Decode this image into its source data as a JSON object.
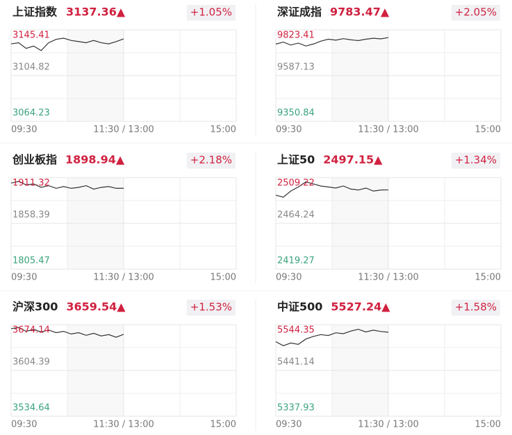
{
  "chart_data": [
    {
      "type": "line",
      "title": "上证指数",
      "subtitle": "3137.36▲",
      "annotation": "+1.05%",
      "color": "#333333",
      "grid": true,
      "ytick_colors": [
        "#d0213f",
        "#888888",
        "#3aa37c"
      ],
      "x": [
        0,
        8,
        16,
        24,
        32,
        40,
        48,
        56,
        64,
        72,
        80,
        88,
        96,
        104,
        112,
        120
      ],
      "values": [
        3133,
        3134,
        3129,
        3131,
        3127,
        3134,
        3137,
        3138,
        3136,
        3135,
        3134,
        3136,
        3134,
        3133,
        3135,
        3137.36
      ],
      "xlim": [
        0,
        240
      ],
      "xticks": [
        {
          "value": 0,
          "label": "09:30"
        },
        {
          "value": 120,
          "label": "11:30 / 13:00"
        },
        {
          "value": 240,
          "label": "15:00"
        }
      ],
      "ylim": [
        3064.23,
        3145.41
      ],
      "yticks": [
        3145.41,
        3104.82,
        3064.23
      ]
    },
    {
      "type": "line",
      "title": "深证成指",
      "subtitle": "9783.47▲",
      "annotation": "+2.05%",
      "color": "#333333",
      "grid": true,
      "ytick_colors": [
        "#d0213f",
        "#888888",
        "#3aa37c"
      ],
      "x": [
        0,
        8,
        16,
        24,
        32,
        40,
        48,
        56,
        64,
        72,
        80,
        88,
        96,
        104,
        112,
        120
      ],
      "values": [
        9750,
        9760,
        9745,
        9755,
        9740,
        9750,
        9765,
        9775,
        9770,
        9778,
        9772,
        9768,
        9775,
        9780,
        9777,
        9783.47
      ],
      "xlim": [
        0,
        240
      ],
      "xticks": [
        {
          "value": 0,
          "label": "09:30"
        },
        {
          "value": 120,
          "label": "11:30 / 13:00"
        },
        {
          "value": 240,
          "label": "15:00"
        }
      ],
      "ylim": [
        9350.84,
        9823.41
      ],
      "yticks": [
        9823.41,
        9587.13,
        9350.84
      ]
    },
    {
      "type": "line",
      "title": "创业板指",
      "subtitle": "1898.94▲",
      "annotation": "+2.18%",
      "color": "#333333",
      "grid": true,
      "ytick_colors": [
        "#d0213f",
        "#888888",
        "#3aa37c"
      ],
      "x": [
        0,
        8,
        16,
        24,
        32,
        40,
        48,
        56,
        64,
        72,
        80,
        88,
        96,
        104,
        112,
        120
      ],
      "values": [
        1905,
        1907,
        1903,
        1904,
        1900,
        1902,
        1899,
        1901,
        1899,
        1900,
        1902,
        1898,
        1900,
        1901,
        1899,
        1898.94
      ],
      "xlim": [
        0,
        240
      ],
      "xticks": [
        {
          "value": 0,
          "label": "09:30"
        },
        {
          "value": 120,
          "label": "11:30 / 13:00"
        },
        {
          "value": 240,
          "label": "15:00"
        }
      ],
      "ylim": [
        1805.47,
        1911.32
      ],
      "yticks": [
        1911.32,
        1858.39,
        1805.47
      ]
    },
    {
      "type": "line",
      "title": "上证50",
      "subtitle": "2497.15▲",
      "annotation": "+1.34%",
      "color": "#333333",
      "grid": true,
      "ytick_colors": [
        "#d0213f",
        "#888888",
        "#3aa37c"
      ],
      "x": [
        0,
        8,
        16,
        24,
        32,
        40,
        48,
        56,
        64,
        72,
        80,
        88,
        96,
        104,
        112,
        120
      ],
      "values": [
        2492,
        2490,
        2496,
        2500,
        2505,
        2503,
        2501,
        2500,
        2499,
        2501,
        2498,
        2497,
        2499,
        2496,
        2497,
        2497.15
      ],
      "xlim": [
        0,
        240
      ],
      "xticks": [
        {
          "value": 0,
          "label": "09:30"
        },
        {
          "value": 120,
          "label": "11:30 / 13:00"
        },
        {
          "value": 240,
          "label": "15:00"
        }
      ],
      "ylim": [
        2419.27,
        2509.22
      ],
      "yticks": [
        2509.22,
        2464.24,
        2419.27
      ]
    },
    {
      "type": "line",
      "title": "沪深300",
      "subtitle": "3659.54▲",
      "annotation": "+1.53%",
      "color": "#333333",
      "grid": true,
      "ytick_colors": [
        "#d0213f",
        "#888888",
        "#3aa37c"
      ],
      "x": [
        0,
        8,
        16,
        24,
        32,
        40,
        48,
        56,
        64,
        72,
        80,
        88,
        96,
        104,
        112,
        120
      ],
      "values": [
        3668,
        3670,
        3664,
        3667,
        3663,
        3666,
        3662,
        3664,
        3660,
        3662,
        3658,
        3661,
        3657,
        3659,
        3655,
        3659.54
      ],
      "xlim": [
        0,
        240
      ],
      "xticks": [
        {
          "value": 0,
          "label": "09:30"
        },
        {
          "value": 120,
          "label": "11:30 / 13:00"
        },
        {
          "value": 240,
          "label": "15:00"
        }
      ],
      "ylim": [
        3534.64,
        3674.14
      ],
      "yticks": [
        3674.14,
        3604.39,
        3534.64
      ]
    },
    {
      "type": "line",
      "title": "中证500",
      "subtitle": "5527.24▲",
      "annotation": "+1.58%",
      "color": "#333333",
      "grid": true,
      "ytick_colors": [
        "#d0213f",
        "#888888",
        "#3aa37c"
      ],
      "x": [
        0,
        8,
        16,
        24,
        32,
        40,
        48,
        56,
        64,
        72,
        80,
        88,
        96,
        104,
        112,
        120
      ],
      "values": [
        5506,
        5497,
        5503,
        5500,
        5512,
        5518,
        5522,
        5520,
        5526,
        5524,
        5530,
        5534,
        5528,
        5532,
        5529,
        5527.24
      ],
      "xlim": [
        0,
        240
      ],
      "xticks": [
        {
          "value": 0,
          "label": "09:30"
        },
        {
          "value": 120,
          "label": "11:30 / 13:00"
        },
        {
          "value": 240,
          "label": "15:00"
        }
      ],
      "ylim": [
        5337.93,
        5544.35
      ],
      "yticks": [
        5544.35,
        5441.14,
        5337.93
      ]
    }
  ]
}
